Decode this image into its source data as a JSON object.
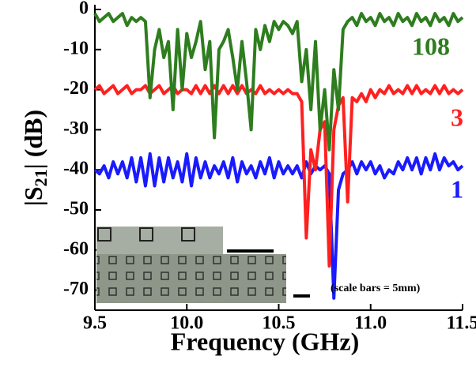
{
  "chart_data": {
    "type": "line",
    "x_label": "Frequency (GHz)",
    "y_label_parts": [
      "|S",
      "21",
      "| (dB)"
    ],
    "xlim": [
      9.5,
      11.5
    ],
    "xticks": [
      9.5,
      {
        "value": 10,
        "label": "10.0"
      },
      10.5,
      {
        "value": 11,
        "label": "11.0"
      },
      11.5
    ],
    "ylim": [
      -75,
      0
    ],
    "yticks": [
      0,
      -10,
      -20,
      -30,
      -40,
      -50,
      -60,
      -70
    ],
    "x": [
      9.5,
      9.525,
      9.55,
      9.575,
      9.6,
      9.625,
      9.65,
      9.675,
      9.7,
      9.725,
      9.75,
      9.775,
      9.8,
      9.825,
      9.85,
      9.875,
      9.9,
      9.925,
      9.95,
      9.975,
      10.0,
      10.025,
      10.05,
      10.075,
      10.1,
      10.125,
      10.15,
      10.175,
      10.2,
      10.225,
      10.25,
      10.275,
      10.3,
      10.325,
      10.35,
      10.375,
      10.4,
      10.425,
      10.45,
      10.475,
      10.5,
      10.525,
      10.55,
      10.575,
      10.6,
      10.625,
      10.65,
      10.675,
      10.7,
      10.725,
      10.75,
      10.775,
      10.8,
      10.825,
      10.85,
      10.875,
      10.9,
      10.925,
      10.95,
      10.975,
      11.0,
      11.025,
      11.05,
      11.075,
      11.1,
      11.125,
      11.15,
      11.175,
      11.2,
      11.225,
      11.25,
      11.275,
      11.3,
      11.325,
      11.35,
      11.375,
      11.4,
      11.425,
      11.45,
      11.475,
      11.5
    ],
    "series": [
      {
        "name": "1",
        "color": "#1a1aff",
        "values": [
          -40,
          -41,
          -39,
          -42,
          -38,
          -41,
          -38,
          -42,
          -37,
          -43,
          -37,
          -44,
          -36,
          -44,
          -37,
          -43,
          -37,
          -42,
          -38,
          -43,
          -36,
          -44,
          -37,
          -42,
          -38,
          -42,
          -39,
          -41,
          -38,
          -42,
          -37,
          -43,
          -38,
          -41,
          -39,
          -42,
          -38,
          -41,
          -37,
          -42,
          -38,
          -41,
          -39,
          -41,
          -39,
          -42,
          -38,
          -41,
          -39,
          -40,
          -39,
          -41,
          -72,
          -45,
          -41,
          -40,
          -38,
          -41,
          -38,
          -40,
          -38,
          -41,
          -39,
          -42,
          -40,
          -41,
          -38,
          -40,
          -37,
          -40,
          -37,
          -41,
          -37,
          -40,
          -36,
          -40,
          -37,
          -39,
          -38,
          -40,
          -39
        ]
      },
      {
        "name": "3",
        "color": "#ff2020",
        "values": [
          -20,
          -19,
          -21,
          -20,
          -19,
          -21,
          -20,
          -19,
          -21,
          -20,
          -20,
          -19,
          -21,
          -20,
          -19,
          -21,
          -20,
          -19,
          -21,
          -20,
          -20,
          -21,
          -19,
          -21,
          -19,
          -21,
          -19,
          -21,
          -19,
          -21,
          -19,
          -21,
          -19,
          -21,
          -20,
          -21,
          -19,
          -21,
          -20,
          -21,
          -20,
          -21,
          -20,
          -21,
          -21,
          -23,
          -57,
          -35,
          -40,
          -30,
          -28,
          -64,
          -30,
          -24,
          -22,
          -48,
          -22,
          -23,
          -21,
          -23,
          -20,
          -22,
          -20,
          -21,
          -19,
          -21,
          -20,
          -21,
          -19,
          -21,
          -19,
          -21,
          -20,
          -21,
          -19,
          -21,
          -19,
          -21,
          -20,
          -21,
          -20
        ]
      },
      {
        "name": "108",
        "color": "#2e7d1e",
        "values": [
          -1,
          -3,
          -2,
          -1,
          -3,
          -2,
          -1,
          -4,
          -2,
          -3,
          -2,
          -3,
          -22,
          -10,
          -5,
          -12,
          -8,
          -25,
          -5,
          -20,
          -6,
          -12,
          -8,
          -3,
          -15,
          -8,
          -32,
          -10,
          -8,
          -5,
          -12,
          -20,
          -8,
          -18,
          -30,
          -5,
          -10,
          -4,
          -8,
          -3,
          -5,
          -3,
          -4,
          -6,
          -3,
          -18,
          -10,
          -25,
          -8,
          -30,
          -20,
          -35,
          -15,
          -25,
          -5,
          -3,
          -2,
          -4,
          -1,
          -3,
          -2,
          -4,
          -1,
          -3,
          -2,
          -4,
          -1,
          -3,
          -2,
          -4,
          -1,
          -3,
          -2,
          -4,
          -1,
          -3,
          -2,
          -4,
          -1,
          -3,
          -2
        ]
      }
    ],
    "annotations": [
      "108",
      "3",
      "1",
      "(scale bars = 5mm)"
    ]
  }
}
